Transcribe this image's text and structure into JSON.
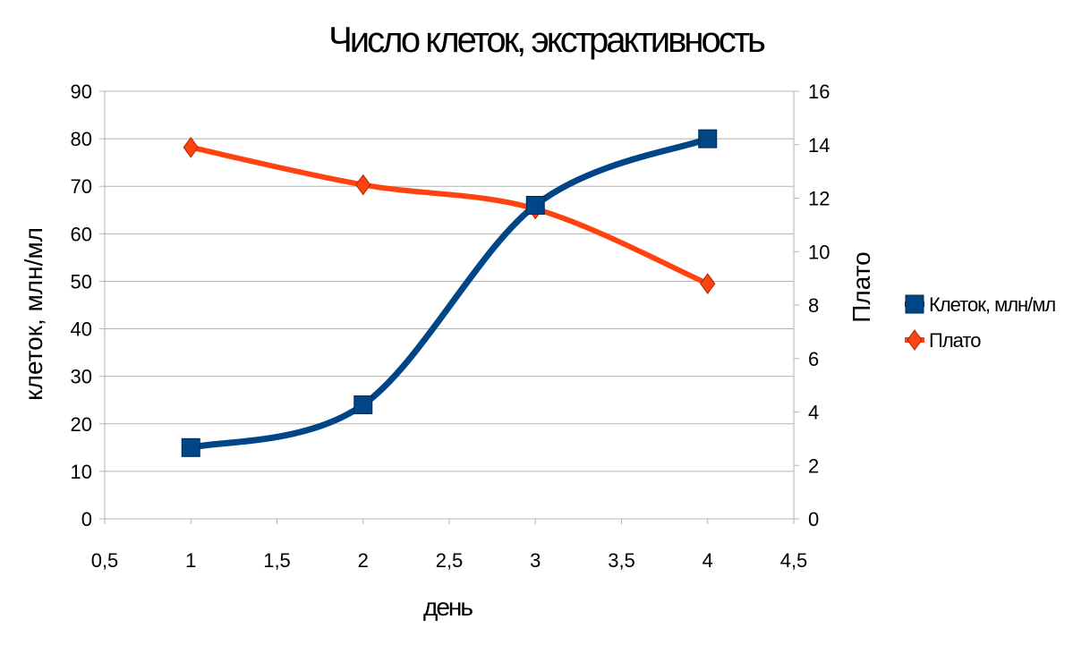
{
  "chart_data": {
    "type": "line",
    "title": "Число клеток, экстрактивность",
    "xlabel": "день",
    "ylabel_left": "клеток, млн/мл",
    "ylabel_right": "Плато",
    "xlim": [
      0.5,
      4.5
    ],
    "ylim_left": [
      0,
      90
    ],
    "ylim_right": [
      0,
      16
    ],
    "x_ticks": [
      "0,5",
      "1",
      "1,5",
      "2",
      "2,5",
      "3",
      "3,5",
      "4",
      "4,5"
    ],
    "y_left_ticks": [
      "0",
      "10",
      "20",
      "30",
      "40",
      "50",
      "60",
      "70",
      "80",
      "90"
    ],
    "y_right_ticks": [
      "0",
      "2",
      "4",
      "6",
      "8",
      "10",
      "12",
      "14",
      "16"
    ],
    "grid": true,
    "legend_position": "right",
    "smoothed": true,
    "series": [
      {
        "name": "Клеток, млн/мл",
        "axis": "left",
        "color": "#004586",
        "marker": "square",
        "x": [
          1,
          2,
          3,
          4
        ],
        "y": [
          15,
          24,
          66,
          80
        ]
      },
      {
        "name": "Плато",
        "axis": "right",
        "color": "#ff420e",
        "marker": "diamond",
        "x": [
          1,
          2,
          3,
          4
        ],
        "y": [
          13.9,
          12.5,
          11.6,
          8.8
        ]
      }
    ]
  }
}
